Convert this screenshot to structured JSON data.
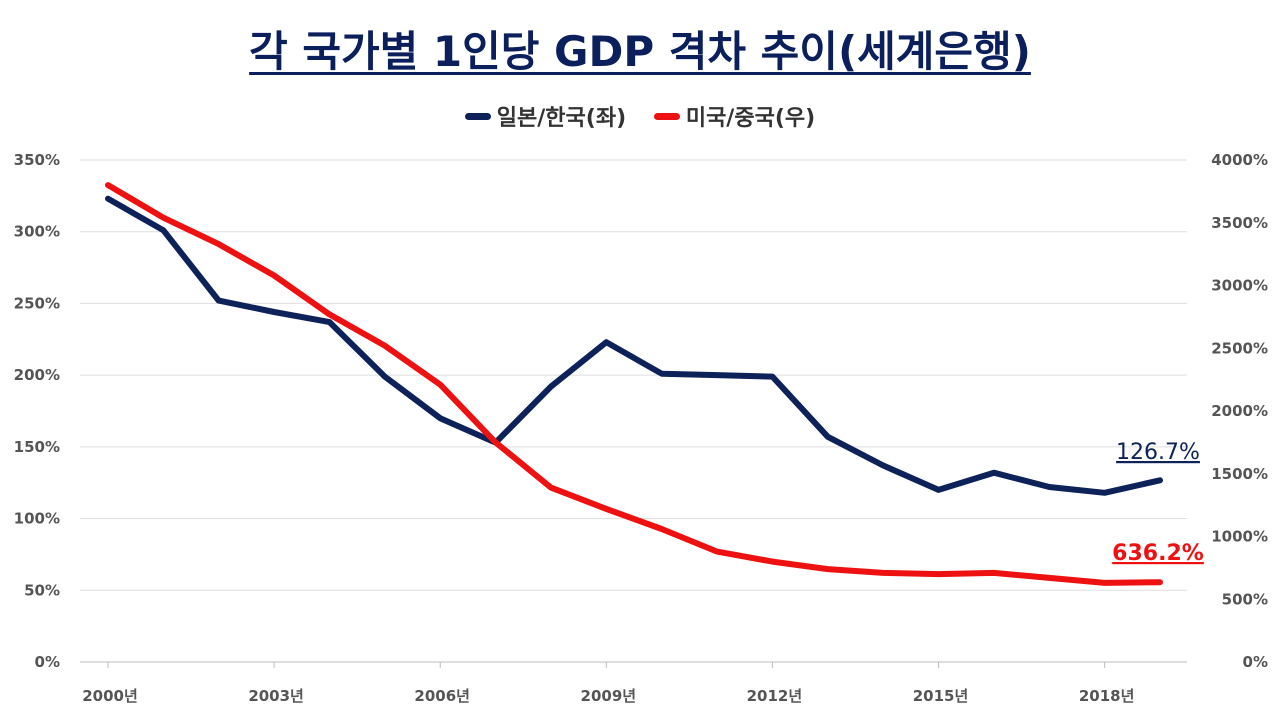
{
  "chart_data": {
    "type": "line",
    "title": "각 국가별 1인당 GDP 격차 추이(세계은행)",
    "x": [
      2000,
      2001,
      2002,
      2003,
      2004,
      2005,
      2006,
      2007,
      2008,
      2009,
      2010,
      2011,
      2012,
      2013,
      2014,
      2015,
      2016,
      2017,
      2018,
      2019
    ],
    "x_tick_labels": [
      "2000년",
      "2003년",
      "2006년",
      "2009년",
      "2012년",
      "2015년",
      "2018년"
    ],
    "x_tick_values": [
      2000,
      2003,
      2006,
      2009,
      2012,
      2015,
      2018
    ],
    "y_left": {
      "ylim": [
        0,
        350
      ],
      "tick_labels": [
        "0%",
        "50%",
        "100%",
        "150%",
        "200%",
        "250%",
        "300%",
        "350%"
      ]
    },
    "y_right": {
      "ylim": [
        0,
        4000
      ],
      "tick_labels": [
        "0%",
        "500%",
        "1000%",
        "1500%",
        "2000%",
        "2500%",
        "3000%",
        "3500%",
        "4000%"
      ]
    },
    "grid": true,
    "legend_position": "top-center",
    "series": [
      {
        "name": "일본/한국(좌)",
        "axis": "left",
        "color": "#0d2259",
        "values": [
          323,
          301,
          252,
          244,
          237,
          199,
          170,
          153,
          192,
          223,
          201,
          200,
          199,
          157,
          137,
          120,
          132,
          122,
          118,
          126.7
        ],
        "end_label": "126.7%"
      },
      {
        "name": "미국/중국(우)",
        "axis": "right",
        "color": "#ee1111",
        "values": [
          3800,
          3540,
          3330,
          3080,
          2770,
          2520,
          2210,
          1750,
          1390,
          1220,
          1060,
          880,
          800,
          740,
          710,
          700,
          710,
          670,
          630,
          636.2
        ],
        "end_label": "636.2%"
      }
    ]
  }
}
